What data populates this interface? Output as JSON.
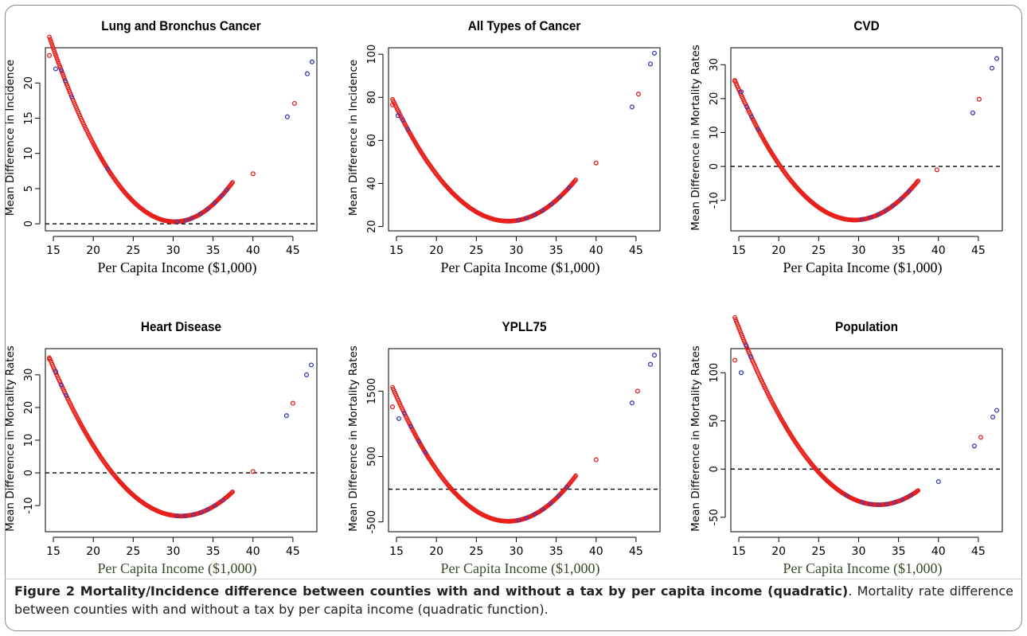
{
  "figure": {
    "caption_bold": "Figure 2 Mortality/Incidence difference between counties with and without a tax by per capita income (quadratic)",
    "caption_rest": ". Mortality rate difference between counties with and without a tax by per capita income (quadratic function)."
  },
  "colors": {
    "red": "#e8201c",
    "blue": "#3a3ab8",
    "axis": "#000000",
    "xlabel_dark": "#3a4a2a"
  },
  "chart_data": [
    {
      "type": "scatter",
      "title": "Lung and Bronchus Cancer",
      "xlabel": "Per Capita Income ($1,000)",
      "ylabel": "Mean Difference in Incidence",
      "xlim": [
        14,
        48
      ],
      "ylim": [
        -1,
        25
      ],
      "xticks": [
        15,
        20,
        25,
        30,
        35,
        40,
        45
      ],
      "yticks": [
        0,
        5,
        10,
        15,
        20
      ],
      "hline": 0,
      "curve": {
        "a": 0.1065,
        "vertex_x": 30.2,
        "vertex_y": 0.3,
        "from": 14.5,
        "to": 37.5
      },
      "outliers": [
        {
          "x": 14.5,
          "y": 23.9,
          "color": "red"
        },
        {
          "x": 15.3,
          "y": 22.0,
          "color": "blue"
        },
        {
          "x": 40.0,
          "y": 7.1,
          "color": "red"
        },
        {
          "x": 44.3,
          "y": 15.2,
          "color": "blue"
        },
        {
          "x": 45.2,
          "y": 17.1,
          "color": "red"
        },
        {
          "x": 46.8,
          "y": 21.3,
          "color": "blue"
        },
        {
          "x": 47.4,
          "y": 23.0,
          "color": "blue"
        }
      ],
      "blue_on_curve": [
        16.0,
        16.5,
        17.3,
        21.8,
        30.5,
        31.6,
        32.3,
        33.4,
        34.3,
        35.2,
        36.1,
        36.7
      ]
    },
    {
      "type": "scatter",
      "title": "All Types of Cancer",
      "xlabel": "Per Capita Income ($1,000)",
      "ylabel": "Mean Difference in Incidence",
      "xlim": [
        14,
        48
      ],
      "ylim": [
        18,
        103
      ],
      "xticks": [
        15,
        20,
        25,
        30,
        35,
        40,
        45
      ],
      "yticks": [
        20,
        40,
        60,
        80,
        100
      ],
      "hline": null,
      "curve": {
        "a": 0.269,
        "vertex_x": 29.0,
        "vertex_y": 22.5,
        "from": 14.5,
        "to": 37.5
      },
      "outliers": [
        {
          "x": 14.5,
          "y": 76.5,
          "color": "red"
        },
        {
          "x": 15.2,
          "y": 71.5,
          "color": "blue"
        },
        {
          "x": 40.0,
          "y": 49.5,
          "color": "red"
        },
        {
          "x": 44.5,
          "y": 75.5,
          "color": "blue"
        },
        {
          "x": 45.3,
          "y": 81.5,
          "color": "red"
        },
        {
          "x": 46.8,
          "y": 95.5,
          "color": "blue"
        },
        {
          "x": 47.3,
          "y": 100.5,
          "color": "blue"
        }
      ],
      "blue_on_curve": [
        15.8,
        16.4,
        30.3,
        31.3,
        32.3,
        33.3,
        34.4,
        35.4,
        36.6
      ]
    },
    {
      "type": "scatter",
      "title": "CVD",
      "xlabel": "Per Capita Income ($1,000)",
      "ylabel": "Mean Difference in Mortality Rates",
      "xlim": [
        14,
        48
      ],
      "ylim": [
        -19,
        35
      ],
      "xticks": [
        15,
        20,
        25,
        30,
        35,
        40,
        45
      ],
      "yticks": [
        -10,
        0,
        10,
        20,
        30
      ],
      "hline": 0,
      "curve": {
        "a": 0.183,
        "vertex_x": 29.5,
        "vertex_y": -15.8,
        "from": 14.5,
        "to": 37.5
      },
      "outliers": [
        {
          "x": 14.5,
          "y": 25.2,
          "color": "red"
        },
        {
          "x": 15.3,
          "y": 22.0,
          "color": "blue"
        },
        {
          "x": 39.8,
          "y": -1.0,
          "color": "red"
        },
        {
          "x": 44.3,
          "y": 15.8,
          "color": "blue"
        },
        {
          "x": 45.1,
          "y": 19.8,
          "color": "red"
        },
        {
          "x": 46.7,
          "y": 29.0,
          "color": "blue"
        },
        {
          "x": 47.3,
          "y": 31.8,
          "color": "blue"
        }
      ],
      "blue_on_curve": [
        16.0,
        16.6,
        17.4,
        30.4,
        31.5,
        32.5,
        33.4,
        34.3,
        35.3,
        36.3
      ]
    },
    {
      "type": "scatter",
      "title": "Heart Disease",
      "xlabel": "Per Capita Income ($1,000)",
      "ylabel": "Mean Difference in Mortality Rates",
      "xlim": [
        14,
        48
      ],
      "ylim": [
        -18,
        38
      ],
      "xticks": [
        15,
        20,
        25,
        30,
        35,
        40,
        45
      ],
      "yticks": [
        -10,
        0,
        10,
        20,
        30
      ],
      "hline": 0,
      "curve": {
        "a": 0.178,
        "vertex_x": 31.0,
        "vertex_y": -13.2,
        "from": 14.5,
        "to": 37.5
      },
      "outliers": [
        {
          "x": 14.5,
          "y": 34.8,
          "color": "red"
        },
        {
          "x": 15.3,
          "y": 31.0,
          "color": "blue"
        },
        {
          "x": 40.0,
          "y": 0.4,
          "color": "red"
        },
        {
          "x": 44.2,
          "y": 17.5,
          "color": "blue"
        },
        {
          "x": 45.0,
          "y": 21.3,
          "color": "red"
        },
        {
          "x": 46.7,
          "y": 30.0,
          "color": "blue"
        },
        {
          "x": 47.3,
          "y": 33.0,
          "color": "blue"
        }
      ],
      "blue_on_curve": [
        16.0,
        16.6,
        30.5,
        31.5,
        32.5,
        33.5,
        34.3,
        35.2,
        36.2
      ]
    },
    {
      "type": "scatter",
      "title": "YPLL75",
      "xlabel": "Per Capita Income ($1,000)",
      "ylabel": "Mean Difference in Mortality Rates",
      "xlim": [
        14,
        48
      ],
      "ylim": [
        -650,
        2150
      ],
      "xticks": [
        15,
        20,
        25,
        30,
        35,
        40,
        45
      ],
      "yticks": [
        -500,
        500,
        1500
      ],
      "hline": 0,
      "curve": {
        "a": 9.75,
        "vertex_x": 29.0,
        "vertex_y": -490,
        "from": 14.5,
        "to": 37.5
      },
      "outliers": [
        {
          "x": 14.5,
          "y": 1260,
          "color": "red"
        },
        {
          "x": 15.3,
          "y": 1080,
          "color": "blue"
        },
        {
          "x": 40.0,
          "y": 450,
          "color": "red"
        },
        {
          "x": 44.5,
          "y": 1320,
          "color": "blue"
        },
        {
          "x": 45.2,
          "y": 1500,
          "color": "red"
        },
        {
          "x": 46.8,
          "y": 1910,
          "color": "blue"
        },
        {
          "x": 47.3,
          "y": 2050,
          "color": "blue"
        }
      ],
      "blue_on_curve": [
        16.0,
        16.8,
        17.8,
        18.6,
        30.3,
        31.3,
        32.3,
        33.3,
        34.3,
        35.3,
        36.3
      ]
    },
    {
      "type": "scatter",
      "title": "Population",
      "xlabel": "Per Capita Income ($1,000)",
      "ylabel": "Mean Difference in Mortality Rates",
      "xlim": [
        14,
        48
      ],
      "ylim": [
        -65,
        125
      ],
      "xticks": [
        15,
        20,
        25,
        30,
        35,
        40,
        45
      ],
      "yticks": [
        -50,
        0,
        50,
        100
      ],
      "hline": 0,
      "curve": {
        "a": 0.6,
        "vertex_x": 32.5,
        "vertex_y": -37,
        "from": 14.5,
        "to": 37.5
      },
      "outliers": [
        {
          "x": 14.5,
          "y": 113,
          "color": "red"
        },
        {
          "x": 15.3,
          "y": 100,
          "color": "blue"
        },
        {
          "x": 40.0,
          "y": -13,
          "color": "blue"
        },
        {
          "x": 44.5,
          "y": 24,
          "color": "blue"
        },
        {
          "x": 45.3,
          "y": 33,
          "color": "red"
        },
        {
          "x": 46.8,
          "y": 54,
          "color": "blue"
        },
        {
          "x": 47.3,
          "y": 61,
          "color": "blue"
        }
      ],
      "blue_on_curve": [
        15.9,
        16.5,
        28.5,
        30.5,
        31.5,
        32.5,
        33.5,
        34.5,
        35.5,
        36.5
      ]
    }
  ]
}
